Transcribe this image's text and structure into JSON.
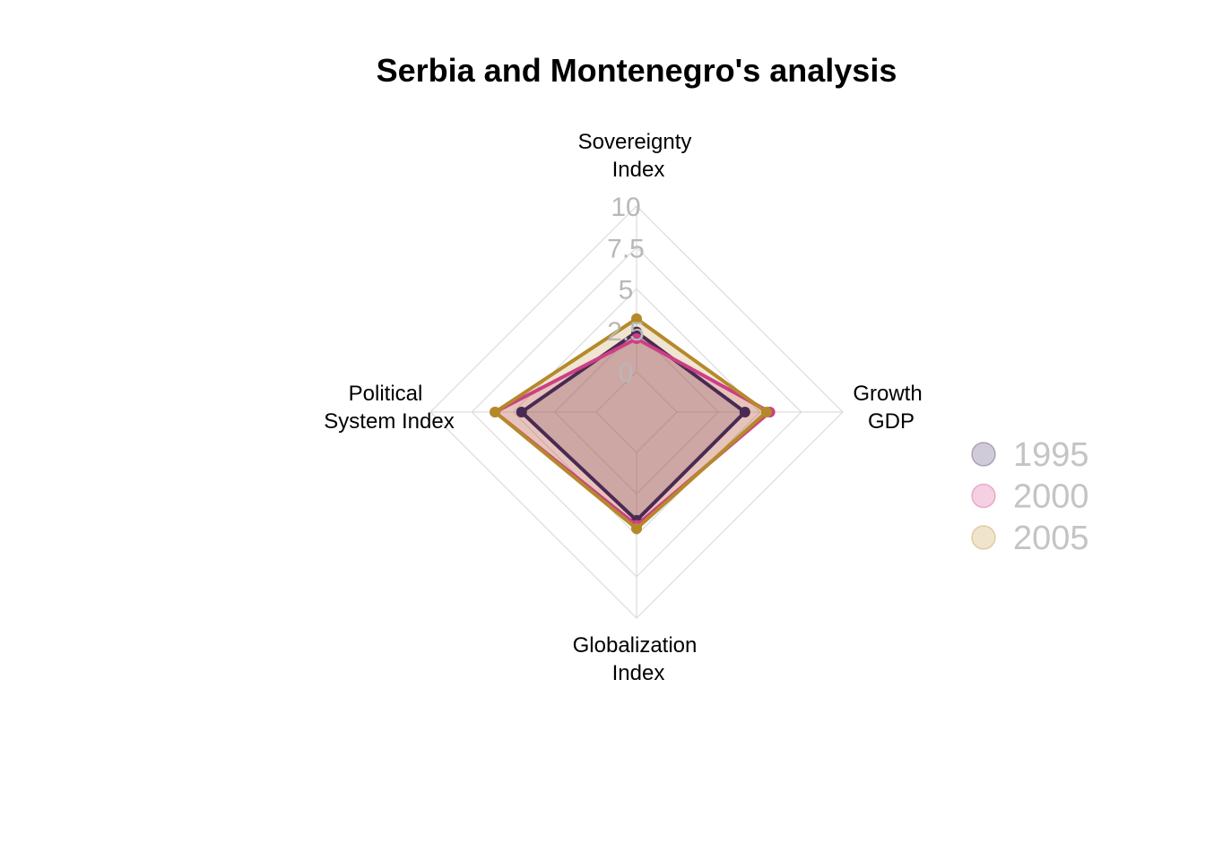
{
  "chart_data": {
    "type": "radar",
    "title": "Serbia and Montenegro's analysis",
    "axes": [
      {
        "name": "sovereignty",
        "label": [
          "Sovereignty",
          "Index"
        ]
      },
      {
        "name": "growth",
        "label": [
          "Growth",
          "GDP"
        ]
      },
      {
        "name": "globalization",
        "label": [
          "Globalization",
          "Index"
        ]
      },
      {
        "name": "political",
        "label": [
          "Political",
          "System Index"
        ]
      }
    ],
    "ticks": [
      "0",
      "2.5",
      "5",
      "7.5",
      "10"
    ],
    "range": [
      0,
      10
    ],
    "grid": true,
    "legend_position": "right",
    "series": [
      {
        "name": "1995",
        "color": "#4a2a52",
        "legend_fill": "#cfcbd9",
        "values": [
          2.4,
          4.1,
          4.1,
          4.5
        ]
      },
      {
        "name": "2000",
        "color": "#cc3f86",
        "legend_fill": "#f5cfe2",
        "values": [
          2.0,
          5.6,
          4.4,
          6.1
        ]
      },
      {
        "name": "2005",
        "color": "#b5892a",
        "legend_fill": "#f1e4cc",
        "values": [
          3.2,
          5.4,
          4.6,
          6.1
        ]
      }
    ]
  }
}
